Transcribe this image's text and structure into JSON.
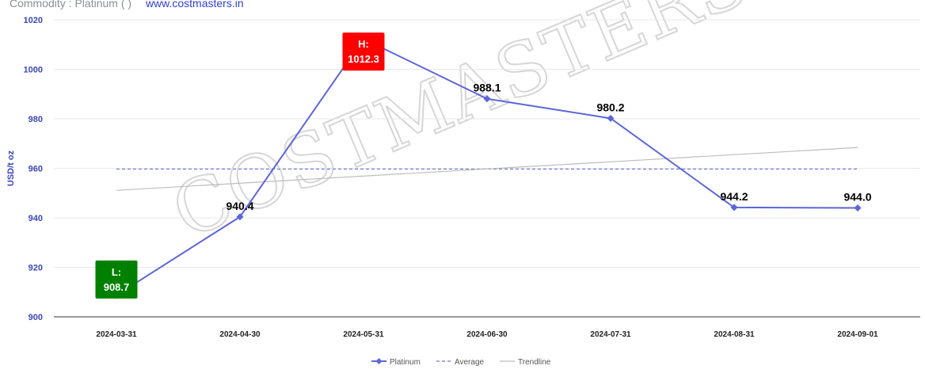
{
  "header": {
    "commodity": "Commodity : Platinum ( )",
    "website": "www.costmasters.in"
  },
  "watermark": "COSTMASTERS",
  "chart_data": {
    "type": "line",
    "ylabel": "USD/t oz",
    "ylim": [
      900,
      1020
    ],
    "yticks": [
      900,
      920,
      940,
      960,
      980,
      1000,
      1020
    ],
    "categories": [
      "2024-03-31",
      "2024-04-30",
      "2024-05-31",
      "2024-06-30",
      "2024-07-31",
      "2024-08-31",
      "2024-09-01"
    ],
    "series": [
      {
        "name": "Platinum",
        "values": [
          908.7,
          940.4,
          1012.3,
          988.1,
          980.2,
          944.2,
          944.0
        ],
        "labels": [
          "908.7",
          "940.4",
          "1012.3",
          "988.1",
          "980.2",
          "944.2",
          "944.0"
        ],
        "color": "#5b66d8"
      }
    ],
    "average": {
      "name": "Average",
      "value": 959.7,
      "color": "#6f78d8"
    },
    "trendline": {
      "name": "Trendline",
      "start": 951.1,
      "end": 968.4,
      "color": "#bdbdbd"
    },
    "high": {
      "prefix": "H:",
      "index": 2,
      "label": "1012.3",
      "color": "#ff0000"
    },
    "low": {
      "prefix": "L:",
      "index": 0,
      "label": "908.7",
      "color": "#008000"
    },
    "grid": true,
    "legend_position": "bottom-center"
  }
}
